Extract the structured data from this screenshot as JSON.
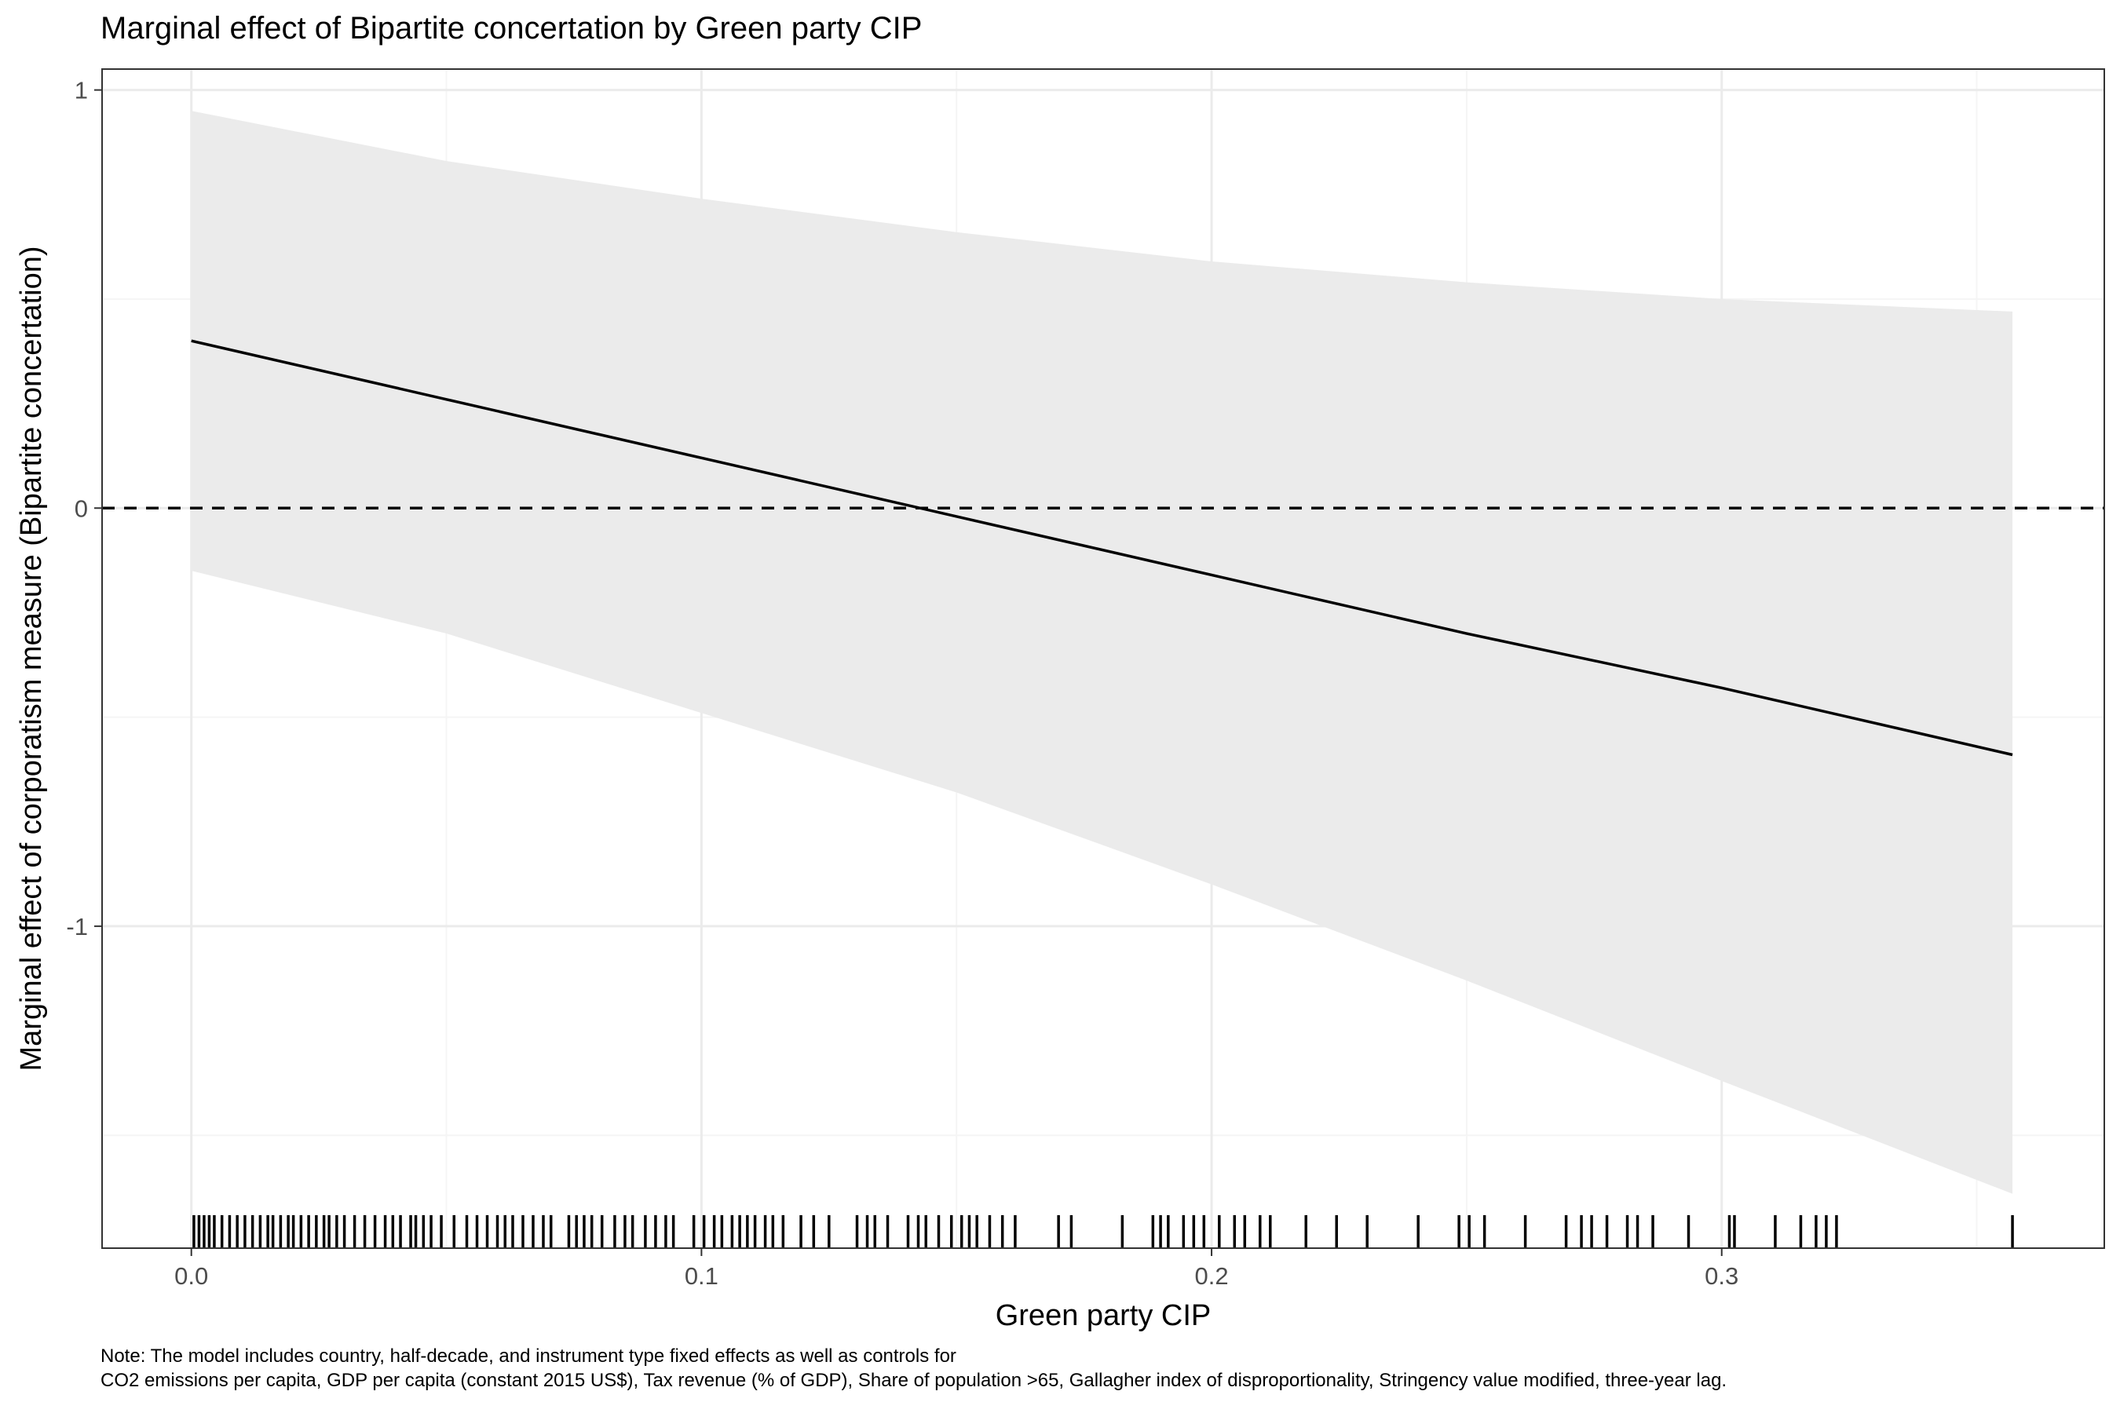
{
  "chart_data": {
    "type": "line",
    "title": "Marginal effect of Bipartite concertation by Green party CIP",
    "xlabel": "Green party CIP",
    "ylabel": "Marginal effect of corporatism measure (Bipartite concertation)",
    "xlim": [
      -0.0175,
      0.375
    ],
    "ylim": [
      -1.77,
      1.05
    ],
    "x_ticks": [
      0.0,
      0.1,
      0.2,
      0.3
    ],
    "x_tick_labels": [
      "0.0",
      "0.1",
      "0.2",
      "0.3"
    ],
    "y_ticks": [
      -1,
      0,
      1
    ],
    "y_tick_labels": [
      "-1",
      "0",
      "1"
    ],
    "grid": true,
    "reference_line": {
      "y": 0,
      "style": "dashed"
    },
    "series": [
      {
        "x": [
          0.0,
          0.05,
          0.1,
          0.15,
          0.2,
          0.25,
          0.3,
          0.357
        ],
        "y": [
          0.4,
          0.26,
          0.12,
          -0.02,
          -0.16,
          -0.3,
          -0.43,
          -0.59
        ],
        "lower": [
          -0.15,
          -0.3,
          -0.49,
          -0.68,
          -0.9,
          -1.13,
          -1.37,
          -1.64
        ],
        "upper": [
          0.95,
          0.83,
          0.74,
          0.66,
          0.59,
          0.54,
          0.5,
          0.47
        ]
      }
    ],
    "rug_x": [
      0.0005,
      0.0015,
      0.0025,
      0.0035,
      0.0045,
      0.006,
      0.0075,
      0.009,
      0.0105,
      0.012,
      0.0135,
      0.015,
      0.016,
      0.0175,
      0.019,
      0.02,
      0.0215,
      0.023,
      0.0245,
      0.026,
      0.027,
      0.0285,
      0.03,
      0.032,
      0.034,
      0.036,
      0.038,
      0.0395,
      0.041,
      0.043,
      0.044,
      0.0455,
      0.047,
      0.049,
      0.0515,
      0.054,
      0.056,
      0.058,
      0.06,
      0.0615,
      0.063,
      0.065,
      0.067,
      0.069,
      0.0705,
      0.074,
      0.0755,
      0.077,
      0.0785,
      0.0805,
      0.083,
      0.085,
      0.0865,
      0.089,
      0.091,
      0.093,
      0.0945,
      0.0985,
      0.1005,
      0.1025,
      0.104,
      0.106,
      0.1075,
      0.109,
      0.1105,
      0.1125,
      0.114,
      0.116,
      0.1195,
      0.122,
      0.125,
      0.1305,
      0.1325,
      0.134,
      0.1365,
      0.1405,
      0.1425,
      0.144,
      0.1465,
      0.149,
      0.151,
      0.1525,
      0.154,
      0.1565,
      0.159,
      0.1615,
      0.17,
      0.1725,
      0.1825,
      0.1885,
      0.19,
      0.1915,
      0.1945,
      0.1965,
      0.1985,
      0.2015,
      0.2045,
      0.2065,
      0.2095,
      0.2115,
      0.2185,
      0.2245,
      0.2305,
      0.2405,
      0.2485,
      0.2505,
      0.2535,
      0.2615,
      0.2695,
      0.2725,
      0.2745,
      0.2775,
      0.2815,
      0.2835,
      0.2865,
      0.2935,
      0.3015,
      0.3025,
      0.3105,
      0.3155,
      0.3185,
      0.3205,
      0.3225,
      0.357
    ]
  },
  "note": {
    "line1": "Note: The model includes country, half-decade, and instrument type fixed effects as well as controls for",
    "line2": "CO2 emissions per capita, GDP per capita (constant 2015 US$), Tax revenue (% of GDP), Share of population >65, Gallagher index of disproportionality, Stringency value modified, three-year lag."
  },
  "colors": {
    "ribbon": "#ebebeb",
    "line": "#000000",
    "grid_major": "#ebebeb",
    "grid_minor": "#f5f5f5",
    "panel_border": "#333333",
    "tick_text": "#4d4d4d"
  }
}
